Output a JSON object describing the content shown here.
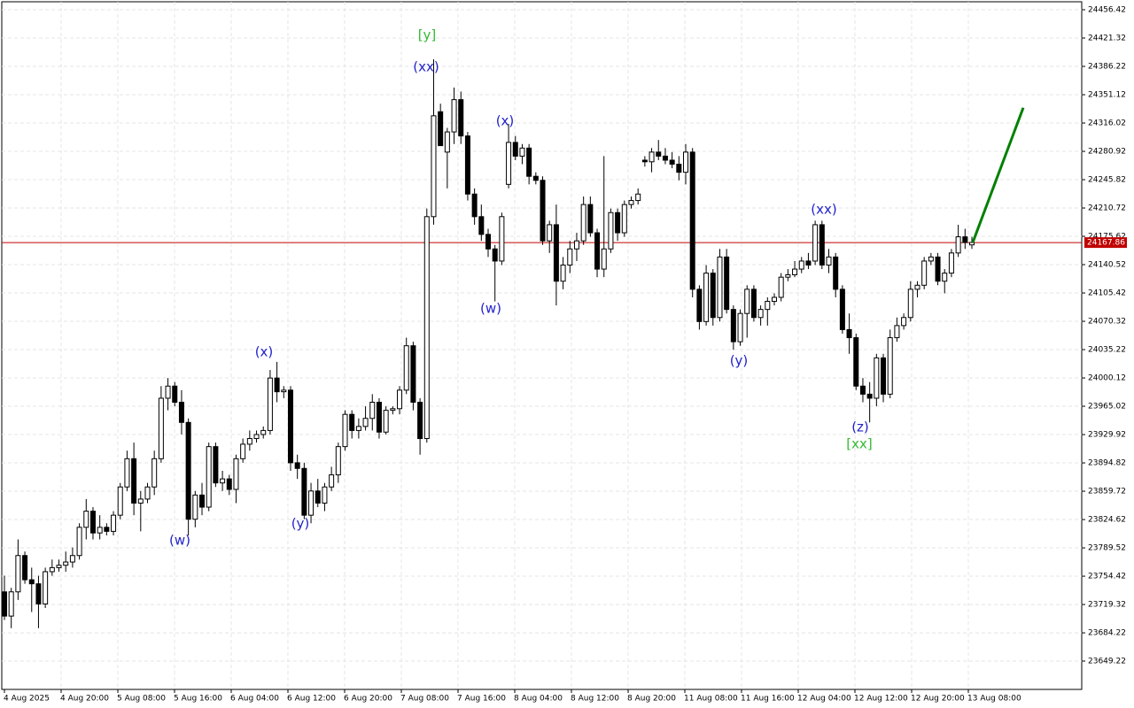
{
  "chart_data": {
    "type": "candlestick",
    "up_color": "#ffffff",
    "down_color": "#000000",
    "outline_color": "#000000",
    "ylim": [
      23614.1,
      24466.3
    ],
    "yticks": [
      23649.22,
      23684.22,
      23719.32,
      23754.42,
      23789.52,
      23824.62,
      23859.72,
      23894.82,
      23929.92,
      23965.02,
      24000.12,
      24035.22,
      24070.32,
      24105.42,
      24140.52,
      24175.62,
      24210.72,
      24245.82,
      24280.92,
      24316.02,
      24351.12,
      24386.22,
      24421.32,
      24456.42
    ],
    "grid": true,
    "x_labels": [
      "4 Aug 2025",
      "4 Aug 20:00",
      "5 Aug 08:00",
      "5 Aug 16:00",
      "6 Aug 04:00",
      "6 Aug 12:00",
      "6 Aug 20:00",
      "7 Aug 08:00",
      "7 Aug 16:00",
      "8 Aug 04:00",
      "8 Aug 12:00",
      "8 Aug 20:00",
      "11 Aug 08:00",
      "11 Aug 16:00",
      "12 Aug 04:00",
      "12 Aug 12:00",
      "12 Aug 20:00",
      "13 Aug 08:00"
    ],
    "last_price": 24167.86,
    "last_price_color": "#c00000",
    "forecast": {
      "color": "#008000",
      "values": [
        24168,
        24335
      ]
    },
    "annotations": [
      {
        "text": "[y]",
        "color": "#33bb33"
      },
      {
        "text": "(xx)",
        "color": "#2222cc"
      },
      {
        "text": "(x)",
        "color": "#2222cc"
      },
      {
        "text": "(w)",
        "color": "#2222cc"
      },
      {
        "text": "(x)",
        "color": "#2222cc"
      },
      {
        "text": "(w)",
        "color": "#2222cc"
      },
      {
        "text": "(y)",
        "color": "#2222cc"
      },
      {
        "text": "(y)",
        "color": "#2222cc"
      },
      {
        "text": "(xx)",
        "color": "#2222cc"
      },
      {
        "text": "(z)",
        "color": "#2222cc"
      },
      {
        "text": "[xx]",
        "color": "#33bb33"
      }
    ],
    "candles": [
      [
        23735,
        23755,
        23700,
        23705
      ],
      [
        23705,
        23740,
        23690,
        23735
      ],
      [
        23735,
        23800,
        23725,
        23780
      ],
      [
        23780,
        23785,
        23745,
        23750
      ],
      [
        23750,
        23765,
        23710,
        23745
      ],
      [
        23745,
        23755,
        23690,
        23720
      ],
      [
        23720,
        23765,
        23715,
        23760
      ],
      [
        23760,
        23775,
        23755,
        23765
      ],
      [
        23765,
        23775,
        23760,
        23768
      ],
      [
        23768,
        23785,
        23760,
        23772
      ],
      [
        23772,
        23790,
        23765,
        23780
      ],
      [
        23780,
        23820,
        23775,
        23815
      ],
      [
        23815,
        23850,
        23800,
        23835
      ],
      [
        23835,
        23840,
        23800,
        23808
      ],
      [
        23808,
        23830,
        23800,
        23815
      ],
      [
        23815,
        23820,
        23805,
        23810
      ],
      [
        23810,
        23835,
        23805,
        23830
      ],
      [
        23830,
        23870,
        23825,
        23865
      ],
      [
        23865,
        23910,
        23860,
        23900
      ],
      [
        23900,
        23920,
        23830,
        23845
      ],
      [
        23845,
        23860,
        23810,
        23850
      ],
      [
        23850,
        23870,
        23845,
        23865
      ],
      [
        23865,
        23910,
        23855,
        23900
      ],
      [
        23900,
        23990,
        23895,
        23975
      ],
      [
        23975,
        24000,
        23960,
        23990
      ],
      [
        23990,
        23995,
        23965,
        23970
      ],
      [
        23970,
        23985,
        23930,
        23945
      ],
      [
        23945,
        23950,
        23805,
        23825
      ],
      [
        23825,
        23860,
        23815,
        23855
      ],
      [
        23855,
        23870,
        23830,
        23840
      ],
      [
        23840,
        23920,
        23835,
        23915
      ],
      [
        23915,
        23920,
        23865,
        23870
      ],
      [
        23870,
        23885,
        23860,
        23875
      ],
      [
        23875,
        23880,
        23855,
        23862
      ],
      [
        23862,
        23905,
        23845,
        23900
      ],
      [
        23900,
        23925,
        23895,
        23918
      ],
      [
        23918,
        23935,
        23910,
        23925
      ],
      [
        23925,
        23935,
        23920,
        23930
      ],
      [
        23930,
        23940,
        23925,
        23935
      ],
      [
        23935,
        24010,
        23930,
        24000
      ],
      [
        24000,
        24020,
        23970,
        23983
      ],
      [
        23983,
        23990,
        23975,
        23985
      ],
      [
        23985,
        23990,
        23885,
        23895
      ],
      [
        23895,
        23905,
        23875,
        23888
      ],
      [
        23888,
        23895,
        23825,
        23830
      ],
      [
        23830,
        23870,
        23820,
        23860
      ],
      [
        23860,
        23875,
        23840,
        23845
      ],
      [
        23845,
        23870,
        23835,
        23865
      ],
      [
        23865,
        23890,
        23860,
        23880
      ],
      [
        23880,
        23920,
        23870,
        23915
      ],
      [
        23915,
        23960,
        23910,
        23955
      ],
      [
        23955,
        23960,
        23925,
        23935
      ],
      [
        23935,
        23950,
        23925,
        23940
      ],
      [
        23940,
        23965,
        23935,
        23950
      ],
      [
        23950,
        23980,
        23935,
        23970
      ],
      [
        23970,
        23975,
        23925,
        23933
      ],
      [
        23933,
        23965,
        23930,
        23960
      ],
      [
        23960,
        23965,
        23955,
        23962
      ],
      [
        23962,
        23990,
        23955,
        23985
      ],
      [
        23985,
        24050,
        23980,
        24040
      ],
      [
        24040,
        24045,
        23960,
        23970
      ],
      [
        23970,
        23975,
        23905,
        23925
      ],
      [
        23925,
        24210,
        23920,
        24200
      ],
      [
        24200,
        24395,
        24190,
        24325
      ],
      [
        24330,
        24340,
        24290,
        24288
      ],
      [
        24280,
        24310,
        24235,
        24305
      ],
      [
        24305,
        24360,
        24290,
        24345
      ],
      [
        24345,
        24355,
        24290,
        24300
      ],
      [
        24300,
        24305,
        24220,
        24228
      ],
      [
        24228,
        24235,
        24190,
        24200
      ],
      [
        24200,
        24215,
        24170,
        24178
      ],
      [
        24178,
        24185,
        24150,
        24160
      ],
      [
        24160,
        24165,
        24095,
        24145
      ],
      [
        24145,
        24205,
        24140,
        24200
      ],
      [
        24240,
        24315,
        24235,
        24292
      ],
      [
        24292,
        24300,
        24270,
        24275
      ],
      [
        24275,
        24290,
        24265,
        24285
      ],
      [
        24285,
        24290,
        24240,
        24250
      ],
      [
        24250,
        24255,
        24240,
        24245
      ],
      [
        24245,
        24250,
        24165,
        24170
      ],
      [
        24170,
        24195,
        24155,
        24190
      ],
      [
        24190,
        24215,
        24090,
        24120
      ],
      [
        24120,
        24150,
        24110,
        24140
      ],
      [
        24140,
        24170,
        24130,
        24160
      ],
      [
        24160,
        24180,
        24145,
        24170
      ],
      [
        24170,
        24225,
        24165,
        24215
      ],
      [
        24215,
        24225,
        24175,
        24180
      ],
      [
        24180,
        24185,
        24125,
        24135
      ],
      [
        24135,
        24275,
        24125,
        24160
      ],
      [
        24160,
        24210,
        24155,
        24205
      ],
      [
        24205,
        24210,
        24170,
        24180
      ],
      [
        24180,
        24220,
        24175,
        24215
      ],
      [
        24215,
        24225,
        24210,
        24220
      ],
      [
        24220,
        24235,
        24215,
        24228
      ],
      [
        24270,
        24275,
        24262,
        24268
      ],
      [
        24268,
        24285,
        24255,
        24280
      ],
      [
        24280,
        24295,
        24270,
        24275
      ],
      [
        24275,
        24285,
        24265,
        24270
      ],
      [
        24270,
        24280,
        24260,
        24265
      ],
      [
        24265,
        24275,
        24245,
        24255
      ],
      [
        24255,
        24290,
        24240,
        24280
      ],
      [
        24280,
        24285,
        24100,
        24110
      ],
      [
        24110,
        24115,
        24060,
        24070
      ],
      [
        24070,
        24140,
        24065,
        24130
      ],
      [
        24130,
        24135,
        24065,
        24075
      ],
      [
        24075,
        24160,
        24070,
        24150
      ],
      [
        24150,
        24160,
        24080,
        24085
      ],
      [
        24085,
        24090,
        24035,
        24045
      ],
      [
        24045,
        24085,
        24040,
        24080
      ],
      [
        24080,
        24115,
        24050,
        24110
      ],
      [
        24110,
        24115,
        24070,
        24075
      ],
      [
        24075,
        24090,
        24065,
        24085
      ],
      [
        24085,
        24100,
        24065,
        24095
      ],
      [
        24095,
        24105,
        24090,
        24100
      ],
      [
        24100,
        24130,
        24095,
        24125
      ],
      [
        24125,
        24135,
        24120,
        24128
      ],
      [
        24128,
        24145,
        24125,
        24135
      ],
      [
        24135,
        24150,
        24130,
        24145
      ],
      [
        24145,
        24155,
        24135,
        24140
      ],
      [
        24145,
        24195,
        24140,
        24190
      ],
      [
        24190,
        24195,
        24135,
        24140
      ],
      [
        24140,
        24160,
        24130,
        24150
      ],
      [
        24150,
        24155,
        24100,
        24110
      ],
      [
        24110,
        24115,
        24055,
        24060
      ],
      [
        24060,
        24080,
        24030,
        24050
      ],
      [
        24050,
        24055,
        23985,
        23990
      ],
      [
        23990,
        24000,
        23970,
        23980
      ],
      [
        23980,
        23995,
        23945,
        23975
      ],
      [
        23975,
        24030,
        23965,
        24025
      ],
      [
        24025,
        24030,
        23970,
        23980
      ],
      [
        23980,
        24060,
        23975,
        24050
      ],
      [
        24050,
        24075,
        24045,
        24065
      ],
      [
        24065,
        24080,
        24060,
        24075
      ],
      [
        24075,
        24120,
        24070,
        24110
      ],
      [
        24110,
        24120,
        24100,
        24115
      ],
      [
        24115,
        24150,
        24110,
        24145
      ],
      [
        24145,
        24155,
        24140,
        24150
      ],
      [
        24150,
        24155,
        24115,
        24120
      ],
      [
        24120,
        24135,
        24105,
        24130
      ],
      [
        24130,
        24160,
        24125,
        24155
      ],
      [
        24155,
        24190,
        24150,
        24175
      ],
      [
        24175,
        24185,
        24160,
        24168
      ],
      [
        24165,
        24175,
        24160,
        24168
      ]
    ]
  }
}
